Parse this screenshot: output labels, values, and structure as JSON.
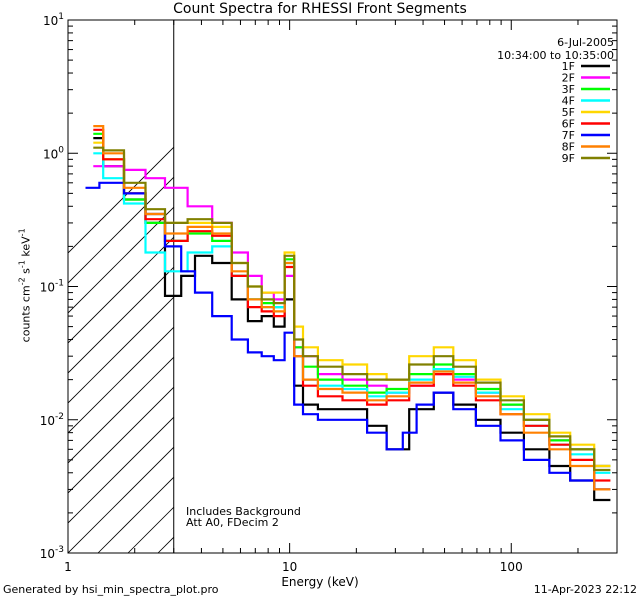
{
  "chart_data": {
    "type": "line",
    "title": "Count Spectra for RHESSI Front Segments",
    "date": "6-Jul-2005",
    "time_range": "10:34:00 to 10:35:00",
    "xlabel": "Energy (keV)",
    "ylabel_text": "counts cm",
    "ylabel_parts": [
      "counts cm",
      "-2",
      " s",
      "-1",
      " keV",
      "-1"
    ],
    "xscale": "log",
    "yscale": "log",
    "xlim": [
      1,
      300
    ],
    "ylim": [
      0.001,
      10
    ],
    "xticks": [
      {
        "value": 1,
        "label": "1"
      },
      {
        "value": 10,
        "label": "10"
      },
      {
        "value": 100,
        "label": "100"
      }
    ],
    "yticks": [
      {
        "value": 0.001,
        "mant": "10",
        "exp": "-3"
      },
      {
        "value": 0.01,
        "mant": "10",
        "exp": "-2"
      },
      {
        "value": 0.1,
        "mant": "10",
        "exp": "-1"
      },
      {
        "value": 1,
        "mant": "10",
        "exp": "0"
      },
      {
        "value": 10,
        "mant": "10",
        "exp": "1"
      }
    ],
    "excluded_region": [
      1,
      3
    ],
    "notes": [
      "Includes Background",
      "Att A0, FDecim 2"
    ],
    "series": [
      {
        "name": "1F",
        "color": "#000000",
        "points": [
          [
            1.3,
            1.3
          ],
          [
            1.6,
            0.8
          ],
          [
            2,
            0.45
          ],
          [
            2.5,
            0.3
          ],
          [
            3,
            0.085
          ],
          [
            3.5,
            0.12
          ],
          [
            4,
            0.17
          ],
          [
            5,
            0.15
          ],
          [
            6,
            0.08
          ],
          [
            7,
            0.055
          ],
          [
            8,
            0.06
          ],
          [
            9,
            0.05
          ],
          [
            10,
            0.08
          ],
          [
            11,
            0.018
          ],
          [
            12,
            0.013
          ],
          [
            15,
            0.012
          ],
          [
            20,
            0.012
          ],
          [
            25,
            0.009
          ],
          [
            30,
            0.006
          ],
          [
            40,
            0.012
          ],
          [
            50,
            0.016
          ],
          [
            60,
            0.013
          ],
          [
            80,
            0.01
          ],
          [
            100,
            0.008
          ],
          [
            130,
            0.006
          ],
          [
            170,
            0.0045
          ],
          [
            200,
            0.0035
          ],
          [
            280,
            0.0025
          ]
        ]
      },
      {
        "name": "2F",
        "color": "#ff00ff",
        "points": [
          [
            1.3,
            0.8
          ],
          [
            1.6,
            0.8
          ],
          [
            2,
            0.75
          ],
          [
            2.5,
            0.65
          ],
          [
            3,
            0.55
          ],
          [
            4,
            0.4
          ],
          [
            5,
            0.3
          ],
          [
            6,
            0.18
          ],
          [
            7,
            0.12
          ],
          [
            8,
            0.09
          ],
          [
            9,
            0.08
          ],
          [
            10,
            0.12
          ],
          [
            11,
            0.035
          ],
          [
            12,
            0.03
          ],
          [
            15,
            0.022
          ],
          [
            20,
            0.02
          ],
          [
            25,
            0.018
          ],
          [
            30,
            0.016
          ],
          [
            40,
            0.018
          ],
          [
            50,
            0.022
          ],
          [
            60,
            0.02
          ],
          [
            80,
            0.016
          ],
          [
            100,
            0.013
          ],
          [
            130,
            0.01
          ],
          [
            170,
            0.007
          ],
          [
            200,
            0.006
          ],
          [
            280,
            0.0045
          ]
        ]
      },
      {
        "name": "3F",
        "color": "#00ff00",
        "points": [
          [
            1.3,
            1.4
          ],
          [
            1.6,
            0.9
          ],
          [
            2,
            0.45
          ],
          [
            2.5,
            0.3
          ],
          [
            3,
            0.22
          ],
          [
            4,
            0.25
          ],
          [
            5,
            0.22
          ],
          [
            6,
            0.12
          ],
          [
            7,
            0.08
          ],
          [
            8,
            0.075
          ],
          [
            9,
            0.07
          ],
          [
            10,
            0.16
          ],
          [
            11,
            0.035
          ],
          [
            12,
            0.025
          ],
          [
            15,
            0.02
          ],
          [
            20,
            0.018
          ],
          [
            25,
            0.016
          ],
          [
            30,
            0.017
          ],
          [
            40,
            0.022
          ],
          [
            50,
            0.026
          ],
          [
            60,
            0.022
          ],
          [
            80,
            0.017
          ],
          [
            100,
            0.013
          ],
          [
            130,
            0.01
          ],
          [
            170,
            0.007
          ],
          [
            200,
            0.006
          ],
          [
            280,
            0.0045
          ]
        ]
      },
      {
        "name": "4F",
        "color": "#00ffff",
        "points": [
          [
            1.3,
            1.0
          ],
          [
            1.6,
            0.65
          ],
          [
            2,
            0.42
          ],
          [
            2.5,
            0.18
          ],
          [
            3,
            0.13
          ],
          [
            4,
            0.18
          ],
          [
            5,
            0.2
          ],
          [
            6,
            0.12
          ],
          [
            7,
            0.08
          ],
          [
            8,
            0.07
          ],
          [
            9,
            0.07
          ],
          [
            10,
            0.15
          ],
          [
            11,
            0.03
          ],
          [
            12,
            0.02
          ],
          [
            15,
            0.018
          ],
          [
            20,
            0.017
          ],
          [
            25,
            0.015
          ],
          [
            30,
            0.016
          ],
          [
            40,
            0.02
          ],
          [
            50,
            0.024
          ],
          [
            60,
            0.021
          ],
          [
            80,
            0.016
          ],
          [
            100,
            0.012
          ],
          [
            130,
            0.009
          ],
          [
            170,
            0.0065
          ],
          [
            200,
            0.0055
          ],
          [
            280,
            0.004
          ]
        ]
      },
      {
        "name": "5F",
        "color": "#ffd700",
        "points": [
          [
            1.3,
            1.2
          ],
          [
            1.6,
            0.9
          ],
          [
            2,
            0.5
          ],
          [
            2.5,
            0.35
          ],
          [
            3,
            0.3
          ],
          [
            4,
            0.3
          ],
          [
            5,
            0.28
          ],
          [
            6,
            0.15
          ],
          [
            7,
            0.1
          ],
          [
            8,
            0.09
          ],
          [
            9,
            0.09
          ],
          [
            10,
            0.18
          ],
          [
            11,
            0.05
          ],
          [
            12,
            0.035
          ],
          [
            15,
            0.028
          ],
          [
            20,
            0.026
          ],
          [
            25,
            0.022
          ],
          [
            30,
            0.02
          ],
          [
            40,
            0.03
          ],
          [
            50,
            0.035
          ],
          [
            60,
            0.028
          ],
          [
            80,
            0.02
          ],
          [
            100,
            0.015
          ],
          [
            130,
            0.011
          ],
          [
            170,
            0.008
          ],
          [
            200,
            0.0065
          ],
          [
            280,
            0.0045
          ]
        ]
      },
      {
        "name": "6F",
        "color": "#ff0000",
        "points": [
          [
            1.3,
            1.5
          ],
          [
            1.6,
            0.9
          ],
          [
            2,
            0.5
          ],
          [
            2.5,
            0.32
          ],
          [
            3,
            0.22
          ],
          [
            4,
            0.26
          ],
          [
            5,
            0.24
          ],
          [
            6,
            0.12
          ],
          [
            7,
            0.07
          ],
          [
            8,
            0.065
          ],
          [
            9,
            0.06
          ],
          [
            10,
            0.14
          ],
          [
            11,
            0.03
          ],
          [
            12,
            0.018
          ],
          [
            15,
            0.015
          ],
          [
            20,
            0.014
          ],
          [
            25,
            0.013
          ],
          [
            30,
            0.014
          ],
          [
            40,
            0.018
          ],
          [
            50,
            0.022
          ],
          [
            60,
            0.018
          ],
          [
            80,
            0.014
          ],
          [
            100,
            0.011
          ],
          [
            130,
            0.009
          ],
          [
            170,
            0.0065
          ],
          [
            200,
            0.005
          ],
          [
            280,
            0.0035
          ]
        ]
      },
      {
        "name": "7F",
        "color": "#0000ff",
        "points": [
          [
            1.2,
            0.55
          ],
          [
            1.6,
            0.6
          ],
          [
            2,
            0.5
          ],
          [
            2.5,
            0.35
          ],
          [
            3,
            0.2
          ],
          [
            3.5,
            0.13
          ],
          [
            4,
            0.09
          ],
          [
            5,
            0.06
          ],
          [
            6,
            0.04
          ],
          [
            7,
            0.032
          ],
          [
            8,
            0.03
          ],
          [
            9,
            0.028
          ],
          [
            10,
            0.045
          ],
          [
            11,
            0.013
          ],
          [
            12,
            0.011
          ],
          [
            15,
            0.01
          ],
          [
            20,
            0.01
          ],
          [
            25,
            0.008
          ],
          [
            30,
            0.006
          ],
          [
            35,
            0.008
          ],
          [
            40,
            0.013
          ],
          [
            50,
            0.016
          ],
          [
            60,
            0.012
          ],
          [
            80,
            0.009
          ],
          [
            100,
            0.007
          ],
          [
            130,
            0.005
          ],
          [
            170,
            0.004
          ],
          [
            200,
            0.0035
          ],
          [
            280,
            0.003
          ]
        ]
      },
      {
        "name": "8F",
        "color": "#ff8000",
        "points": [
          [
            1.3,
            1.6
          ],
          [
            1.6,
            1.0
          ],
          [
            2,
            0.55
          ],
          [
            2.5,
            0.35
          ],
          [
            3,
            0.25
          ],
          [
            4,
            0.28
          ],
          [
            5,
            0.25
          ],
          [
            6,
            0.13
          ],
          [
            7,
            0.08
          ],
          [
            8,
            0.07
          ],
          [
            9,
            0.065
          ],
          [
            10,
            0.15
          ],
          [
            11,
            0.03
          ],
          [
            12,
            0.02
          ],
          [
            15,
            0.017
          ],
          [
            20,
            0.016
          ],
          [
            25,
            0.014
          ],
          [
            30,
            0.015
          ],
          [
            40,
            0.019
          ],
          [
            50,
            0.023
          ],
          [
            60,
            0.019
          ],
          [
            80,
            0.015
          ],
          [
            100,
            0.011
          ],
          [
            130,
            0.008
          ],
          [
            170,
            0.006
          ],
          [
            200,
            0.0045
          ],
          [
            280,
            0.003
          ]
        ]
      },
      {
        "name": "9F",
        "color": "#808000",
        "points": [
          [
            1.3,
            1.1
          ],
          [
            1.6,
            1.05
          ],
          [
            2,
            0.6
          ],
          [
            2.5,
            0.38
          ],
          [
            3,
            0.3
          ],
          [
            4,
            0.32
          ],
          [
            5,
            0.3
          ],
          [
            6,
            0.15
          ],
          [
            7,
            0.1
          ],
          [
            8,
            0.08
          ],
          [
            9,
            0.075
          ],
          [
            10,
            0.17
          ],
          [
            11,
            0.04
          ],
          [
            12,
            0.03
          ],
          [
            15,
            0.025
          ],
          [
            20,
            0.022
          ],
          [
            25,
            0.02
          ],
          [
            30,
            0.02
          ],
          [
            40,
            0.026
          ],
          [
            50,
            0.03
          ],
          [
            60,
            0.025
          ],
          [
            80,
            0.019
          ],
          [
            100,
            0.014
          ],
          [
            130,
            0.01
          ],
          [
            170,
            0.0075
          ],
          [
            200,
            0.006
          ],
          [
            280,
            0.0042
          ]
        ]
      }
    ]
  },
  "footer": {
    "generated_by": "Generated by hsi_min_spectra_plot.pro",
    "timestamp": "11-Apr-2023 22:12"
  }
}
